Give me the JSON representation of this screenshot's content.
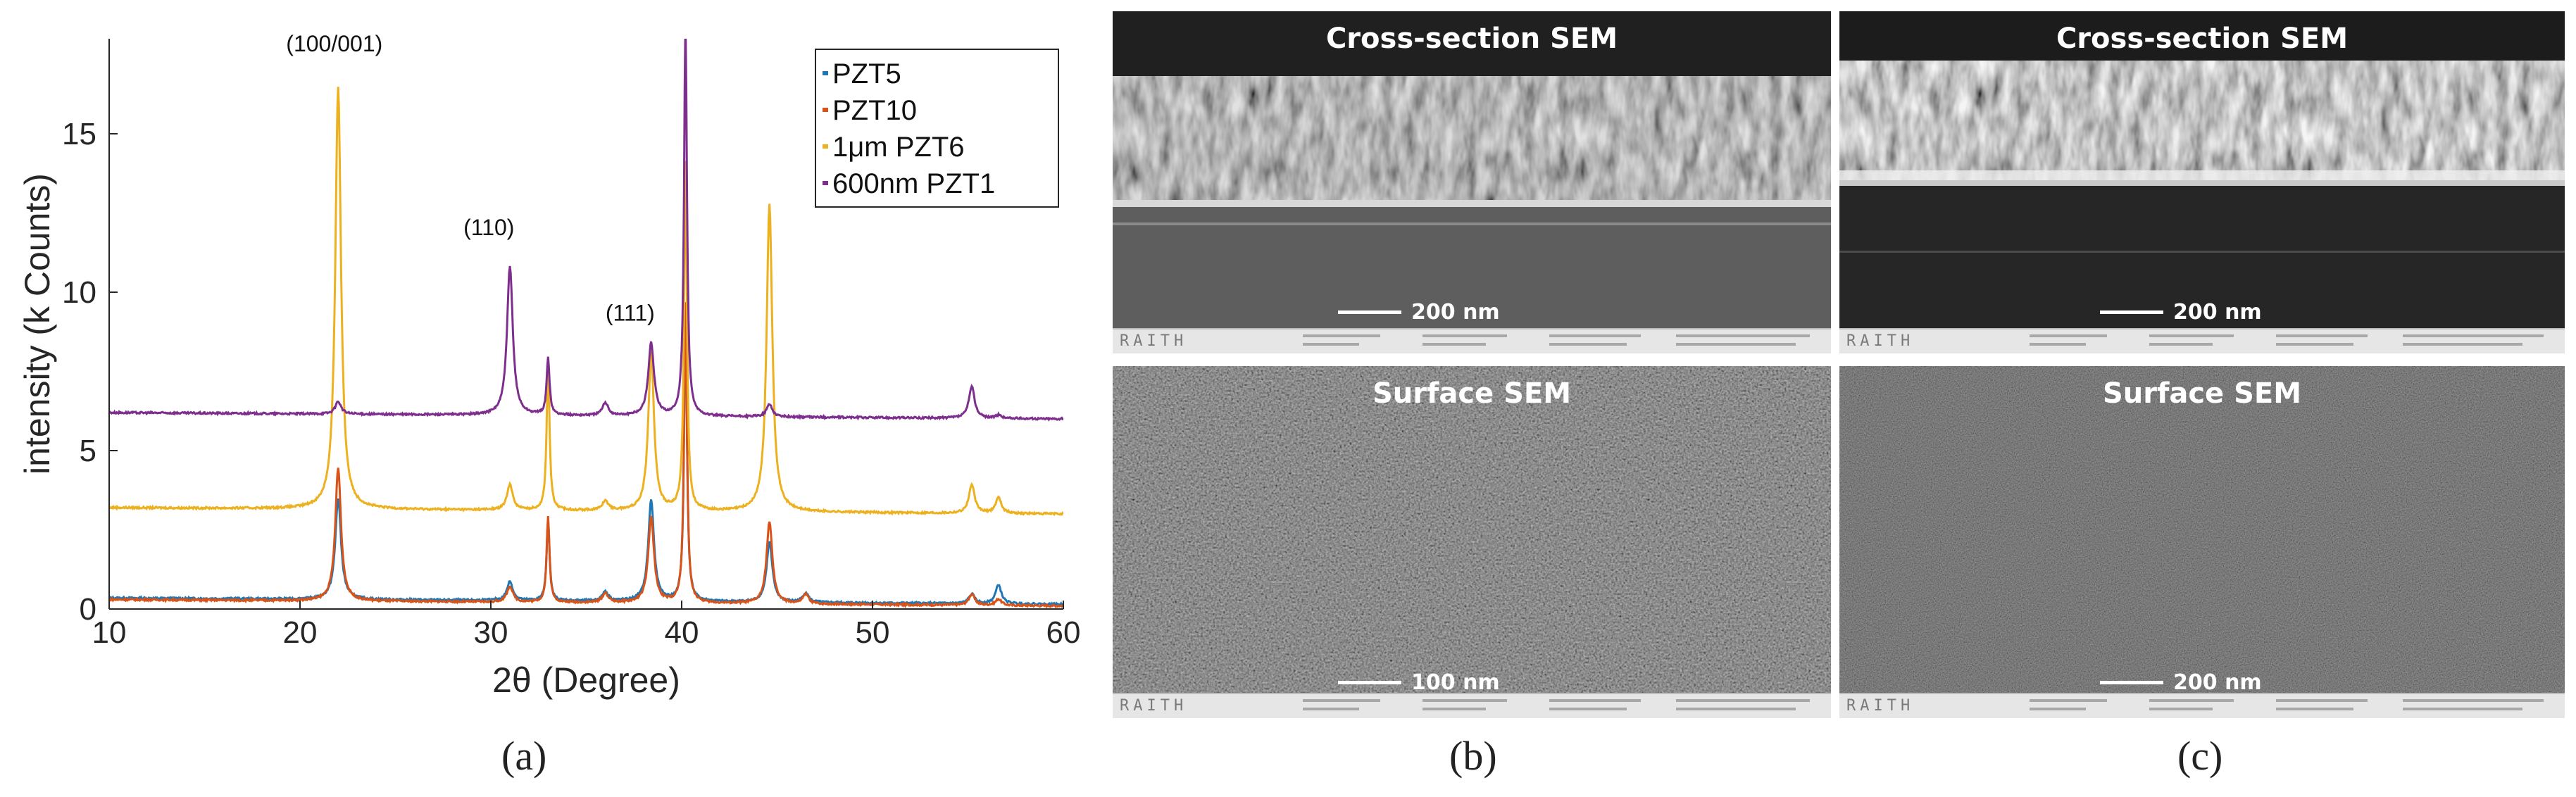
{
  "figure": {
    "captions": {
      "a": "(a)",
      "b": "(b)",
      "c": "(c)"
    }
  },
  "chart_data": {
    "type": "line",
    "title": "",
    "xlabel": "2θ (Degree)",
    "ylabel": "intensity (k Counts)",
    "xlim": [
      10,
      60
    ],
    "ylim": [
      0,
      18
    ],
    "xticks": [
      10,
      20,
      30,
      40,
      50,
      60
    ],
    "yticks": [
      0,
      5,
      10,
      15
    ],
    "grid": false,
    "legend_position": "top-right",
    "annotations": [
      {
        "text": "(100/001)",
        "x": 21.8,
        "y": 17.6
      },
      {
        "text": "(110)",
        "x": 29.9,
        "y": 11.8
      },
      {
        "text": "(111)",
        "x": 37.3,
        "y": 9.1
      }
    ],
    "series": [
      {
        "name": "PZT5",
        "color": "#1f77b4",
        "baseline": 0.35,
        "peaks": [
          [
            22.0,
            3.2
          ],
          [
            31.0,
            0.6
          ],
          [
            33.0,
            2.6
          ],
          [
            36.0,
            0.3
          ],
          [
            38.4,
            3.2
          ],
          [
            40.2,
            9.0
          ],
          [
            44.6,
            1.9
          ],
          [
            46.5,
            0.3
          ],
          [
            55.2,
            0.3
          ],
          [
            56.6,
            0.6
          ]
        ]
      },
      {
        "name": "PZT10",
        "color": "#d95319",
        "baseline": 0.3,
        "peaks": [
          [
            22.0,
            4.2
          ],
          [
            31.0,
            0.5
          ],
          [
            33.0,
            2.7
          ],
          [
            36.0,
            0.3
          ],
          [
            38.4,
            2.7
          ],
          [
            40.2,
            9.5
          ],
          [
            44.6,
            2.6
          ],
          [
            46.5,
            0.3
          ],
          [
            55.2,
            0.35
          ],
          [
            56.6,
            0.2
          ]
        ]
      },
      {
        "name": "1μm PZT6",
        "color": "#edb120",
        "baseline": 3.2,
        "peaks": [
          [
            22.0,
            13.3
          ],
          [
            31.0,
            0.8
          ],
          [
            33.0,
            4.6
          ],
          [
            36.0,
            0.3
          ],
          [
            38.4,
            5.0
          ],
          [
            40.2,
            11.0
          ],
          [
            44.6,
            9.7
          ],
          [
            55.2,
            0.9
          ],
          [
            56.6,
            0.5
          ]
        ]
      },
      {
        "name": "600nm PZT1",
        "color": "#7e2f8e",
        "baseline": 6.2,
        "peaks": [
          [
            22.0,
            0.4
          ],
          [
            31.0,
            4.7
          ],
          [
            33.0,
            1.8
          ],
          [
            36.0,
            0.4
          ],
          [
            38.4,
            2.3
          ],
          [
            40.2,
            12.5
          ],
          [
            44.6,
            0.4
          ],
          [
            55.2,
            1.0
          ],
          [
            56.6,
            0.1
          ]
        ]
      }
    ]
  },
  "sem_panels": [
    {
      "id": "b-top",
      "title": "Cross-section SEM",
      "scale": "200 nm"
    },
    {
      "id": "c-top",
      "title": "Cross-section SEM",
      "scale": "200 nm"
    },
    {
      "id": "b-bottom",
      "title": "Surface SEM",
      "scale": "100 nm"
    },
    {
      "id": "c-bottom",
      "title": "Surface SEM",
      "scale": "200 nm"
    }
  ],
  "infobar": {
    "logo": "RAITH"
  }
}
